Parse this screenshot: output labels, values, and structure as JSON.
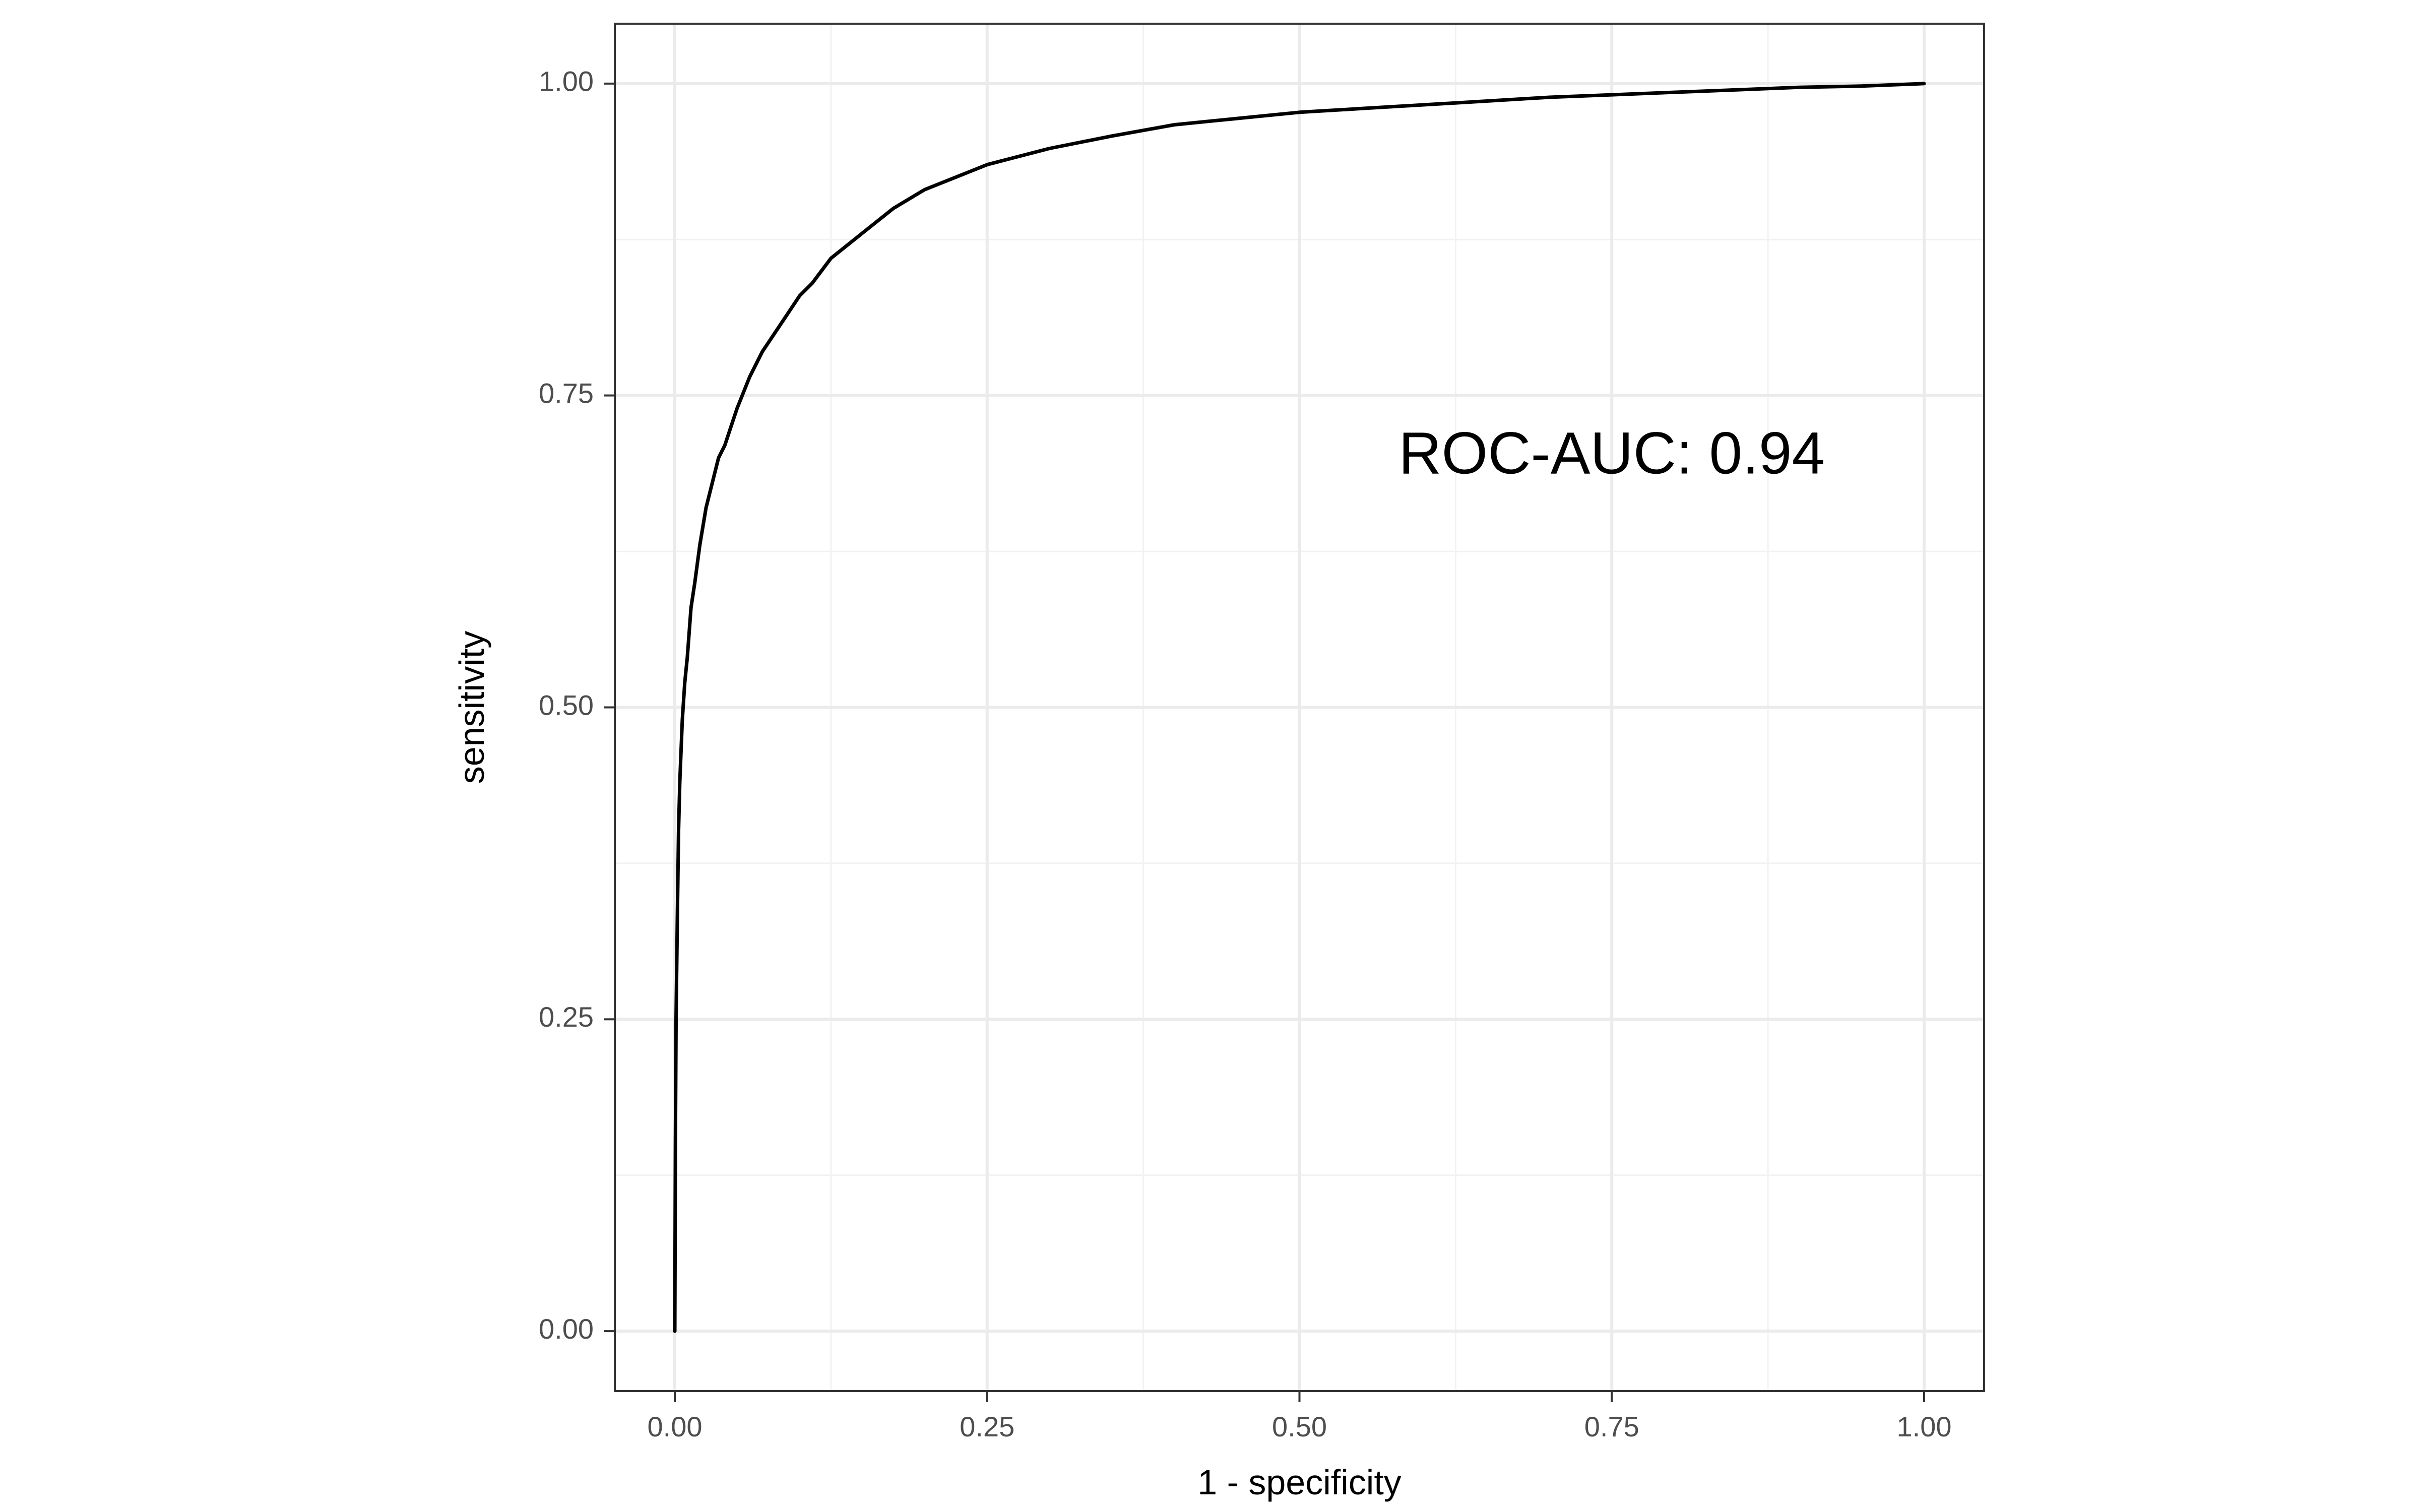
{
  "chart_data": {
    "type": "line",
    "title": "",
    "xlabel": "1 - specificity",
    "ylabel": "sensitivity",
    "xlim": [
      -0.048,
      1.048
    ],
    "ylim": [
      -0.048,
      1.048
    ],
    "grid": true,
    "x_ticks": [
      0.0,
      0.25,
      0.5,
      0.75,
      1.0
    ],
    "y_ticks": [
      0.0,
      0.25,
      0.5,
      0.75,
      1.0
    ],
    "x_tick_labels": [
      "0.00",
      "0.25",
      "0.50",
      "0.75",
      "1.00"
    ],
    "y_tick_labels": [
      "0.00",
      "0.25",
      "0.50",
      "0.75",
      "1.00"
    ],
    "annotation": {
      "text": "ROC-AUC: 0.94",
      "x": 0.75,
      "y": 0.7
    },
    "series": [
      {
        "color": "#000000",
        "x": [
          0.0,
          0.0005,
          0.001,
          0.002,
          0.003,
          0.004,
          0.006,
          0.008,
          0.01,
          0.013,
          0.016,
          0.02,
          0.025,
          0.03,
          0.035,
          0.04,
          0.045,
          0.05,
          0.06,
          0.07,
          0.08,
          0.09,
          0.1,
          0.11,
          0.125,
          0.15,
          0.175,
          0.2,
          0.225,
          0.25,
          0.3,
          0.35,
          0.4,
          0.45,
          0.5,
          0.55,
          0.6,
          0.65,
          0.7,
          0.75,
          0.8,
          0.85,
          0.9,
          0.95,
          1.0
        ],
        "y": [
          0.0,
          0.15,
          0.25,
          0.33,
          0.4,
          0.44,
          0.49,
          0.52,
          0.54,
          0.58,
          0.6,
          0.63,
          0.66,
          0.68,
          0.7,
          0.71,
          0.725,
          0.74,
          0.765,
          0.785,
          0.8,
          0.815,
          0.83,
          0.84,
          0.86,
          0.88,
          0.9,
          0.915,
          0.925,
          0.935,
          0.948,
          0.958,
          0.967,
          0.972,
          0.977,
          0.98,
          0.983,
          0.986,
          0.989,
          0.991,
          0.993,
          0.995,
          0.997,
          0.998,
          1.0
        ]
      }
    ]
  },
  "colors": {
    "background": "#ffffff",
    "panel_border": "#333333",
    "grid_major": "#ebebeb",
    "grid_minor": "#f2f2f2",
    "tick_label": "#4d4d4d",
    "line": "#000000"
  }
}
